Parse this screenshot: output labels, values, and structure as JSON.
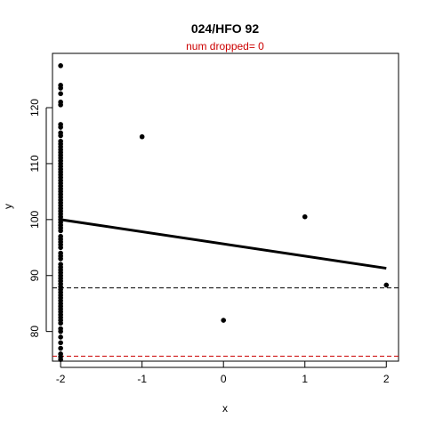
{
  "chart_data": {
    "type": "scatter",
    "title": "024/HFO 92",
    "subtitle": "num dropped= 0",
    "xlabel": "x",
    "ylabel": "y",
    "xlim": [
      -2.1,
      2.15
    ],
    "ylim": [
      74.7,
      129.7
    ],
    "xticks": [
      -2,
      -1,
      0,
      1,
      2
    ],
    "yticks": [
      80,
      90,
      100,
      110,
      120
    ],
    "colors": {
      "points": "#000000",
      "fit_line": "#000000",
      "ref_line_1": "#000000",
      "ref_line_2": "#cc0000",
      "subtitle": "#cc0000",
      "axes": "#000000"
    },
    "series": [
      {
        "points": [
          {
            "x": -2,
            "y": 127.5
          },
          {
            "x": -2,
            "y": 124.0
          },
          {
            "x": -2,
            "y": 123.5
          },
          {
            "x": -2,
            "y": 122.5
          },
          {
            "x": -2,
            "y": 121.0
          },
          {
            "x": -2,
            "y": 120.5
          },
          {
            "x": -2,
            "y": 117.0
          },
          {
            "x": -2,
            "y": 116.5
          },
          {
            "x": -2,
            "y": 115.5
          },
          {
            "x": -2,
            "y": 115.0
          },
          {
            "x": -2,
            "y": 114.0
          },
          {
            "x": -2,
            "y": 113.5
          },
          {
            "x": -2,
            "y": 113.0
          },
          {
            "x": -2,
            "y": 112.5
          },
          {
            "x": -2,
            "y": 112.0
          },
          {
            "x": -2,
            "y": 111.5
          },
          {
            "x": -2,
            "y": 111.0
          },
          {
            "x": -2,
            "y": 110.5
          },
          {
            "x": -2,
            "y": 110.0
          },
          {
            "x": -2,
            "y": 109.5
          },
          {
            "x": -2,
            "y": 109.0
          },
          {
            "x": -2,
            "y": 108.5
          },
          {
            "x": -2,
            "y": 108.0
          },
          {
            "x": -2,
            "y": 107.5
          },
          {
            "x": -2,
            "y": 107.0
          },
          {
            "x": -2,
            "y": 106.5
          },
          {
            "x": -2,
            "y": 106.0
          },
          {
            "x": -2,
            "y": 105.5
          },
          {
            "x": -2,
            "y": 105.0
          },
          {
            "x": -2,
            "y": 104.5
          },
          {
            "x": -2,
            "y": 104.0
          },
          {
            "x": -2,
            "y": 103.5
          },
          {
            "x": -2,
            "y": 103.0
          },
          {
            "x": -2,
            "y": 102.5
          },
          {
            "x": -2,
            "y": 102.0
          },
          {
            "x": -2,
            "y": 101.5
          },
          {
            "x": -2,
            "y": 101.0
          },
          {
            "x": -2,
            "y": 100.5
          },
          {
            "x": -2,
            "y": 100.0
          },
          {
            "x": -2,
            "y": 99.5
          },
          {
            "x": -2,
            "y": 99.0
          },
          {
            "x": -2,
            "y": 98.5
          },
          {
            "x": -2,
            "y": 98.0
          },
          {
            "x": -2,
            "y": 97.0
          },
          {
            "x": -2,
            "y": 96.5
          },
          {
            "x": -2,
            "y": 96.0
          },
          {
            "x": -2,
            "y": 95.5
          },
          {
            "x": -2,
            "y": 95.0
          },
          {
            "x": -2,
            "y": 94.0
          },
          {
            "x": -2,
            "y": 93.5
          },
          {
            "x": -2,
            "y": 93.0
          },
          {
            "x": -2,
            "y": 92.0
          },
          {
            "x": -2,
            "y": 91.5
          },
          {
            "x": -2,
            "y": 91.0
          },
          {
            "x": -2,
            "y": 90.5
          },
          {
            "x": -2,
            "y": 90.0
          },
          {
            "x": -2,
            "y": 89.5
          },
          {
            "x": -2,
            "y": 89.0
          },
          {
            "x": -2,
            "y": 88.5
          },
          {
            "x": -2,
            "y": 88.0
          },
          {
            "x": -2,
            "y": 87.5
          },
          {
            "x": -2,
            "y": 87.0
          },
          {
            "x": -2,
            "y": 86.5
          },
          {
            "x": -2,
            "y": 86.0
          },
          {
            "x": -2,
            "y": 85.5
          },
          {
            "x": -2,
            "y": 85.0
          },
          {
            "x": -2,
            "y": 84.5
          },
          {
            "x": -2,
            "y": 84.0
          },
          {
            "x": -2,
            "y": 83.5
          },
          {
            "x": -2,
            "y": 83.0
          },
          {
            "x": -2,
            "y": 82.5
          },
          {
            "x": -2,
            "y": 82.0
          },
          {
            "x": -2,
            "y": 81.5
          },
          {
            "x": -2,
            "y": 80.5
          },
          {
            "x": -2,
            "y": 80.0
          },
          {
            "x": -2,
            "y": 79.0
          },
          {
            "x": -2,
            "y": 78.0
          },
          {
            "x": -2,
            "y": 77.0
          },
          {
            "x": -2,
            "y": 76.0
          },
          {
            "x": -2,
            "y": 75.5
          },
          {
            "x": -2,
            "y": 75.0
          },
          {
            "x": -1,
            "y": 114.8
          },
          {
            "x": 0,
            "y": 82.0
          },
          {
            "x": 1,
            "y": 100.5
          },
          {
            "x": 2,
            "y": 88.3
          }
        ]
      }
    ],
    "fit_line": {
      "x1": -2,
      "y1": 100.0,
      "x2": 2,
      "y2": 91.3
    },
    "reference_lines": [
      {
        "y": 87.8,
        "color": "#000000",
        "style": "dashed"
      },
      {
        "y": 75.6,
        "color": "#cc0000",
        "style": "dashed"
      }
    ],
    "grid": false,
    "legend": "none"
  }
}
